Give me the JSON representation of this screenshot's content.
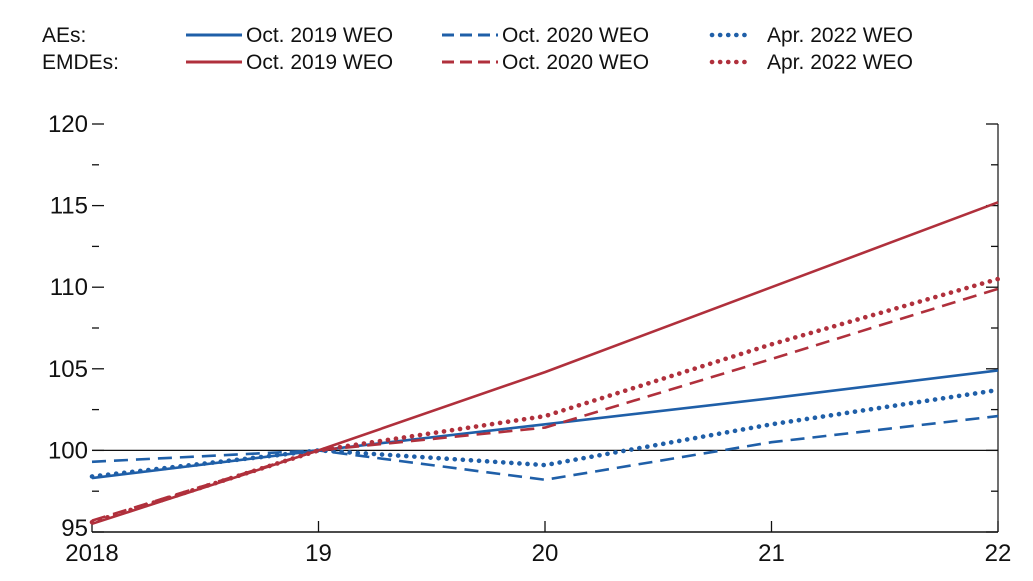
{
  "chart_data": {
    "type": "line",
    "x": [
      "2018",
      "19",
      "20",
      "21",
      "22"
    ],
    "xticklabels": [
      "2018",
      "19",
      "20",
      "21",
      "22"
    ],
    "ylim": [
      95,
      120
    ],
    "yticks": [
      95,
      100,
      105,
      110,
      115,
      120
    ],
    "yticklabels": [
      "95",
      "100",
      "105",
      "110",
      "115",
      "120"
    ],
    "reference_line": 100,
    "grid": false,
    "legend": {
      "placement": "top",
      "groups": [
        {
          "label": "AEs:",
          "color": "#1f5fa8"
        },
        {
          "label": "EMDEs:",
          "color": "#b0303c"
        }
      ],
      "entries": [
        "Oct. 2019 WEO",
        "Oct. 2020 WEO",
        "Apr. 2022 WEO"
      ],
      "styles": [
        "solid",
        "dashed",
        "dotted"
      ]
    },
    "series": [
      {
        "name": "Oct. 2019 WEO",
        "group": "AEs",
        "color": "#1f5fa8",
        "style": "solid",
        "values": [
          98.3,
          100,
          101.6,
          103.2,
          104.9
        ]
      },
      {
        "name": "Oct. 2020 WEO",
        "group": "AEs",
        "color": "#1f5fa8",
        "style": "dashed",
        "values": [
          99.3,
          100,
          98.2,
          100.5,
          102.1
        ]
      },
      {
        "name": "Apr. 2022 WEO",
        "group": "AEs",
        "color": "#1f5fa8",
        "style": "dotted",
        "values": [
          98.4,
          100,
          99.1,
          101.6,
          103.7
        ]
      },
      {
        "name": "Oct. 2019 WEO",
        "group": "EMDEs",
        "color": "#b0303c",
        "style": "solid",
        "values": [
          95.5,
          100,
          104.8,
          110.0,
          115.2
        ]
      },
      {
        "name": "Oct. 2020 WEO",
        "group": "EMDEs",
        "color": "#b0303c",
        "style": "dashed",
        "values": [
          95.7,
          100,
          101.4,
          105.6,
          109.9
        ]
      },
      {
        "name": "Apr. 2022 WEO",
        "group": "EMDEs",
        "color": "#b0303c",
        "style": "dotted",
        "values": [
          95.6,
          100,
          102.1,
          106.5,
          110.5
        ]
      }
    ]
  }
}
